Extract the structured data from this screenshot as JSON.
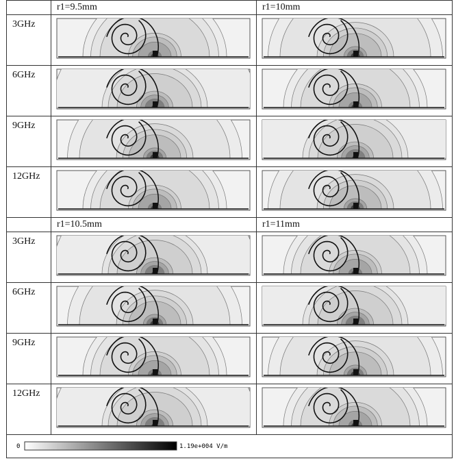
{
  "groups": [
    {
      "columns": [
        "r1=9.5mm",
        "r1=10mm"
      ],
      "rows": [
        "3GHz",
        "6GHz",
        "9GHz",
        "12GHz"
      ]
    },
    {
      "columns": [
        "r1=10.5mm",
        "r1=11mm"
      ],
      "rows": [
        "3GHz",
        "6GHz",
        "9GHz",
        "12GHz"
      ]
    }
  ],
  "colorbar": {
    "min_label": "0",
    "max_label": "1.19e+004 V/m"
  }
}
